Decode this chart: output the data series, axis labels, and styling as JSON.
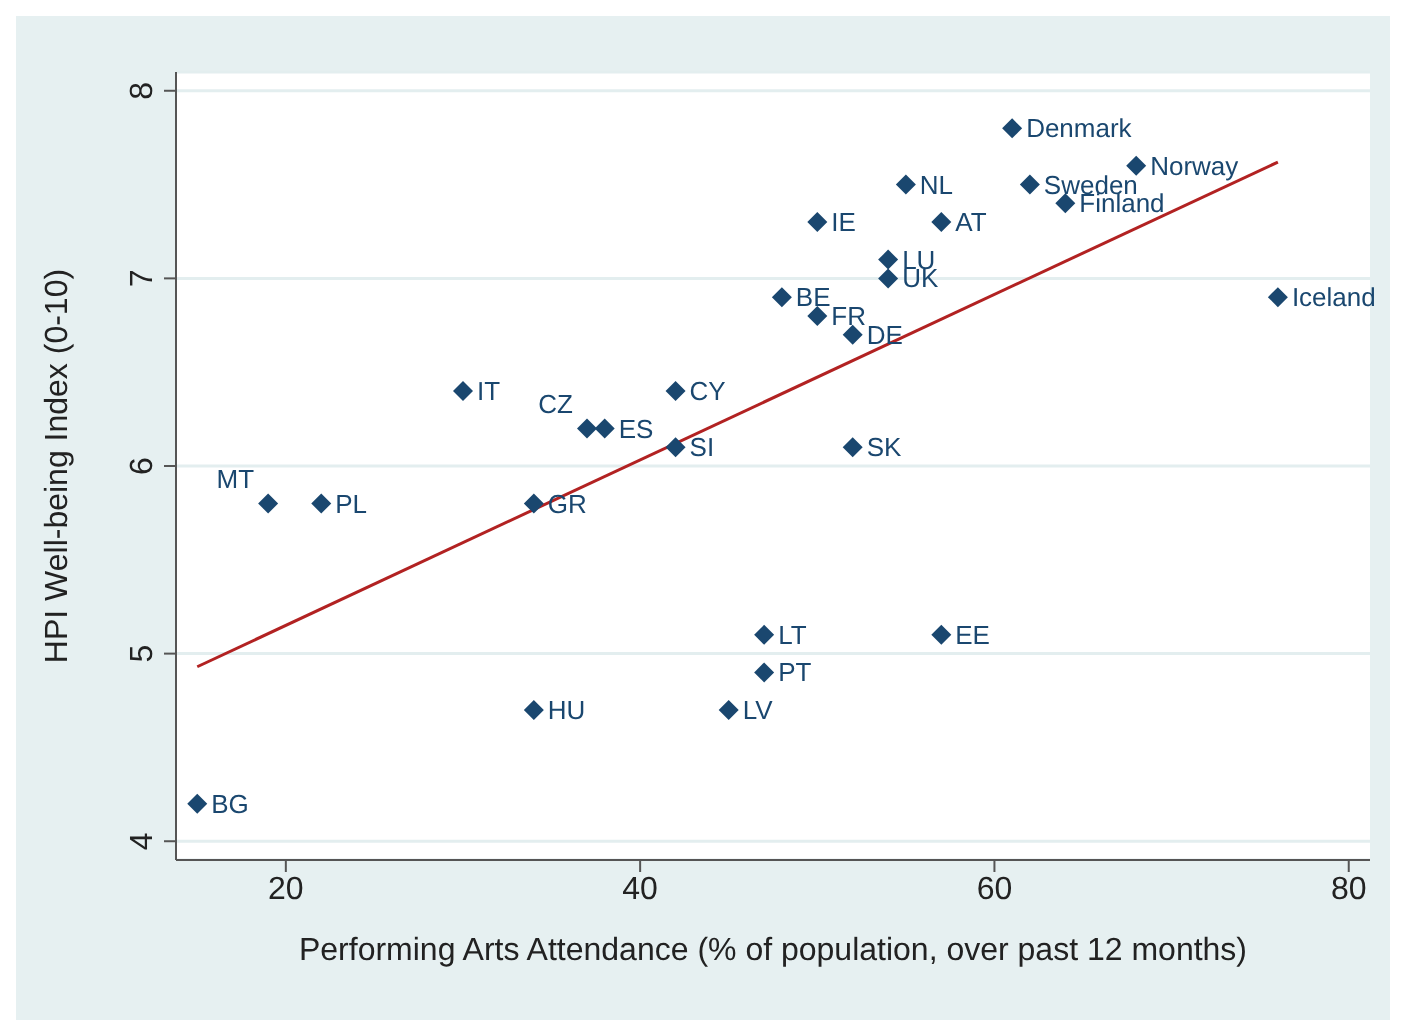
{
  "chart_data": {
    "type": "scatter",
    "xlabel": "Performing Arts Attendance (% of population, over past 12 months)",
    "ylabel": "HPI Well-being Index (0-10)",
    "xlim": [
      13.8,
      81.2
    ],
    "ylim": [
      3.9,
      8.1
    ],
    "xticks": [
      20,
      40,
      60,
      80
    ],
    "yticks": [
      4,
      5,
      6,
      7,
      8
    ],
    "grid": "y",
    "marker": "diamond",
    "legend": false,
    "series": [
      {
        "color": "#1a476f",
        "x": [
          61,
          68,
          55,
          62,
          64,
          50,
          57,
          54,
          54,
          76,
          48,
          50,
          52,
          30,
          42,
          37,
          38,
          42,
          52,
          19,
          22,
          34,
          47,
          57,
          47,
          34,
          45,
          15
        ],
        "values": [
          7.8,
          7.6,
          7.5,
          7.5,
          7.4,
          7.3,
          7.3,
          7.1,
          7.0,
          6.9,
          6.9,
          6.8,
          6.7,
          6.4,
          6.4,
          6.2,
          6.2,
          6.1,
          6.1,
          5.8,
          5.8,
          5.8,
          5.1,
          5.1,
          4.9,
          4.7,
          4.7,
          4.2
        ],
        "value_labels": [
          "Denmark",
          "Norway",
          "NL",
          "Sweden",
          "Finland",
          "IE",
          "AT",
          "LU",
          "UK",
          "Iceland",
          "BE",
          "FR",
          "DE",
          "IT",
          "CY",
          "CZ",
          "ES",
          "SI",
          "SK",
          "MT",
          "PL",
          "GR",
          "LT",
          "EE",
          "PT",
          "HU",
          "LV",
          "BG"
        ]
      },
      {
        "type": "line",
        "color": "#b22222",
        "x": [
          15,
          76
        ],
        "values": [
          4.93,
          7.62
        ],
        "marker": "none"
      }
    ]
  }
}
